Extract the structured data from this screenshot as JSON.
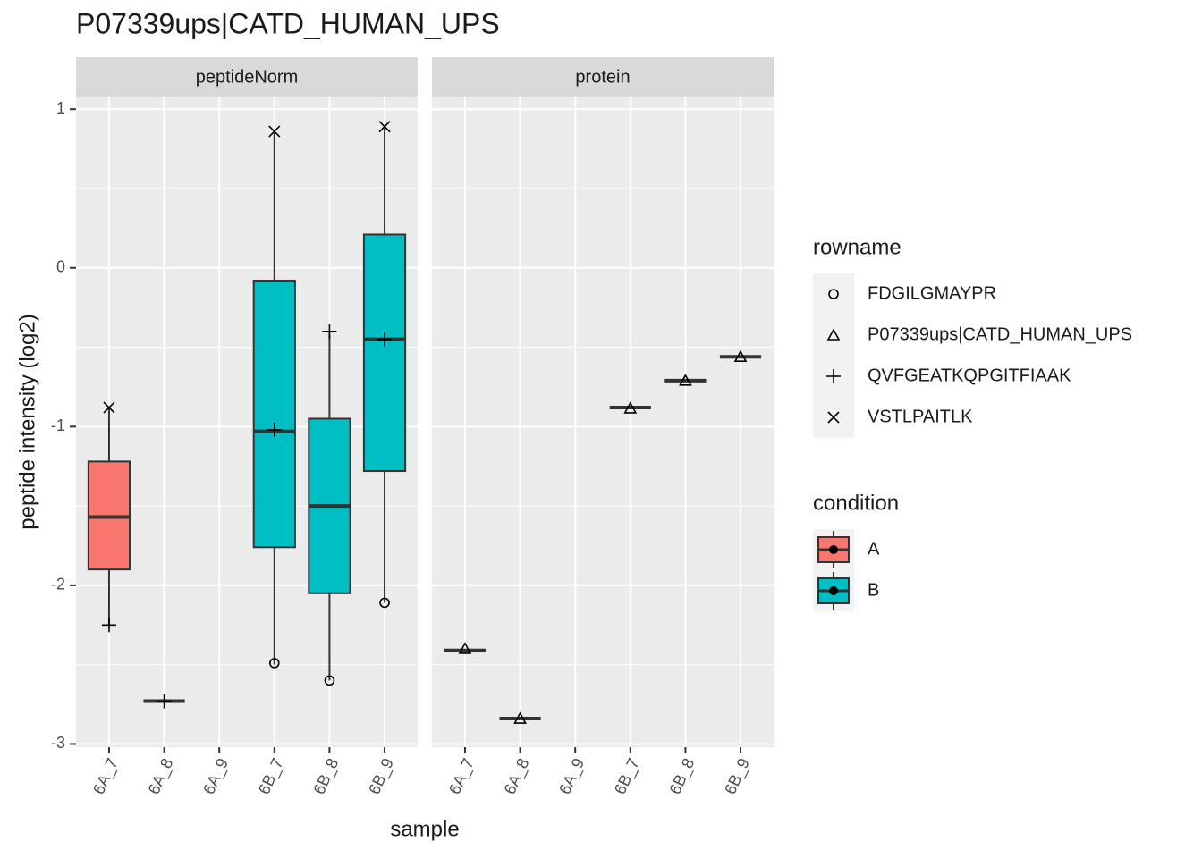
{
  "chart_data": {
    "type": "box",
    "title": "P07339ups|CATD_HUMAN_UPS",
    "x_label": "sample",
    "y_label": "peptide intensity (log2)",
    "panels": [
      "peptideNorm",
      "protein"
    ],
    "categories": [
      "6A_7",
      "6A_8",
      "6A_9",
      "6B_7",
      "6B_8",
      "6B_9"
    ],
    "conditions": [
      "A",
      "A",
      "A",
      "B",
      "B",
      "B"
    ],
    "ylim": [
      -3.02,
      1.08
    ],
    "yticks": [
      -3,
      -2,
      -1,
      0,
      1
    ],
    "grid": true,
    "boxes": [
      [
        {
          "whislo": -2.25,
          "q1": -1.9,
          "med": -1.57,
          "q3": -1.22,
          "whishi": -0.88
        },
        {
          "whislo": -2.73,
          "q1": -2.73,
          "med": -2.73,
          "q3": -2.73,
          "whishi": -2.73
        },
        null,
        {
          "whislo": -2.5,
          "q1": -1.76,
          "med": -1.03,
          "q3": -0.08,
          "whishi": 0.86
        },
        {
          "whislo": -2.6,
          "q1": -2.05,
          "med": -1.5,
          "q3": -0.95,
          "whishi": -0.41
        },
        {
          "whislo": -2.11,
          "q1": -1.28,
          "med": -0.45,
          "q3": 0.21,
          "whishi": 0.88
        }
      ],
      [
        {
          "whislo": -2.41,
          "q1": -2.41,
          "med": -2.41,
          "q3": -2.41,
          "whishi": -2.41
        },
        {
          "whislo": -2.84,
          "q1": -2.84,
          "med": -2.84,
          "q3": -2.84,
          "whishi": -2.84
        },
        null,
        {
          "whislo": -0.88,
          "q1": -0.88,
          "med": -0.88,
          "q3": -0.88,
          "whishi": -0.88
        },
        {
          "whislo": -0.71,
          "q1": -0.71,
          "med": -0.71,
          "q3": -0.71,
          "whishi": -0.71
        },
        {
          "whislo": -0.56,
          "q1": -0.56,
          "med": -0.56,
          "q3": -0.56,
          "whishi": -0.56
        }
      ]
    ],
    "rowname_legend_title": "rowname",
    "series": [
      {
        "name": "FDGILGMAYPR",
        "shape": "circle",
        "values": [
          [
            null,
            null,
            null,
            -2.49,
            -2.6,
            -2.11
          ],
          [
            null,
            null,
            null,
            null,
            null,
            null
          ]
        ]
      },
      {
        "name": "P07339ups|CATD_HUMAN_UPS",
        "shape": "triangle",
        "values": [
          [
            null,
            null,
            null,
            null,
            null,
            null
          ],
          [
            -2.4,
            -2.84,
            null,
            -0.885,
            -0.71,
            -0.56
          ]
        ]
      },
      {
        "name": "QVFGEATKQPGITFIAAK",
        "shape": "plus",
        "values": [
          [
            -2.25,
            -2.73,
            null,
            -1.02,
            -0.4,
            -0.45
          ],
          [
            null,
            null,
            null,
            null,
            null,
            null
          ]
        ]
      },
      {
        "name": "VSTLPAITLK",
        "shape": "cross",
        "values": [
          [
            -0.88,
            null,
            null,
            0.86,
            null,
            0.89
          ],
          [
            null,
            null,
            null,
            null,
            null,
            null
          ]
        ]
      }
    ],
    "condition_legend": {
      "title": "condition",
      "items": [
        {
          "name": "A",
          "color": "#f8766d"
        },
        {
          "name": "B",
          "color": "#00bfc4"
        }
      ]
    }
  }
}
